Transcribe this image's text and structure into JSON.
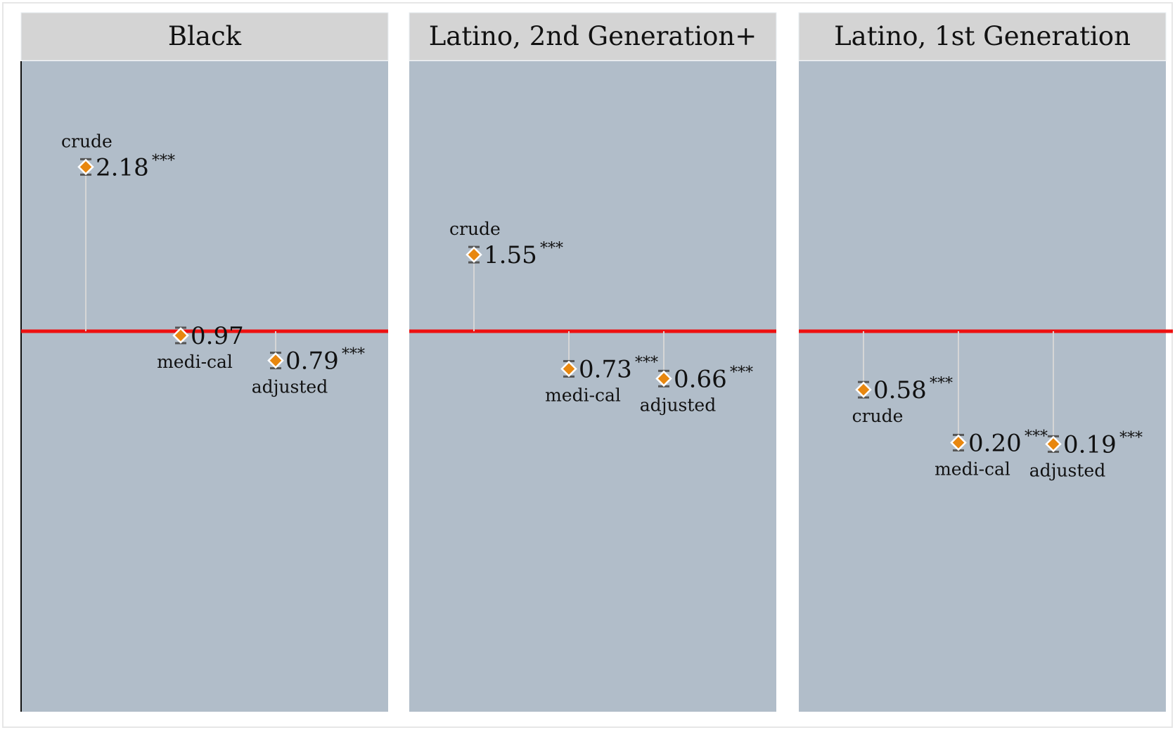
{
  "chart_data": {
    "type": "scatter",
    "reference_line": 1.0,
    "reference_line_color": "#ee1111",
    "marker_color": "#e8870f",
    "panel_background": "#b1bdc9",
    "header_background": "#d4d4d4",
    "panels": [
      {
        "title": "Black",
        "points": [
          {
            "label": "crude",
            "value": 2.18,
            "display": "2.18",
            "sig": "***"
          },
          {
            "label": "medi-cal",
            "value": 0.97,
            "display": "0.97",
            "sig": ""
          },
          {
            "label": "adjusted",
            "value": 0.79,
            "display": "0.79",
            "sig": "***"
          }
        ]
      },
      {
        "title": "Latino, 2nd Generation+",
        "points": [
          {
            "label": "crude",
            "value": 1.55,
            "display": "1.55",
            "sig": "***"
          },
          {
            "label": "medi-cal",
            "value": 0.73,
            "display": "0.73",
            "sig": "***"
          },
          {
            "label": "adjusted",
            "value": 0.66,
            "display": "0.66",
            "sig": "***"
          }
        ]
      },
      {
        "title": "Latino, 1st Generation",
        "points": [
          {
            "label": "crude",
            "value": 0.58,
            "display": "0.58",
            "sig": "***"
          },
          {
            "label": "medi-cal",
            "value": 0.2,
            "display": "0.20",
            "sig": "***"
          },
          {
            "label": "adjusted",
            "value": 0.19,
            "display": "0.19",
            "sig": "***"
          }
        ]
      }
    ]
  }
}
